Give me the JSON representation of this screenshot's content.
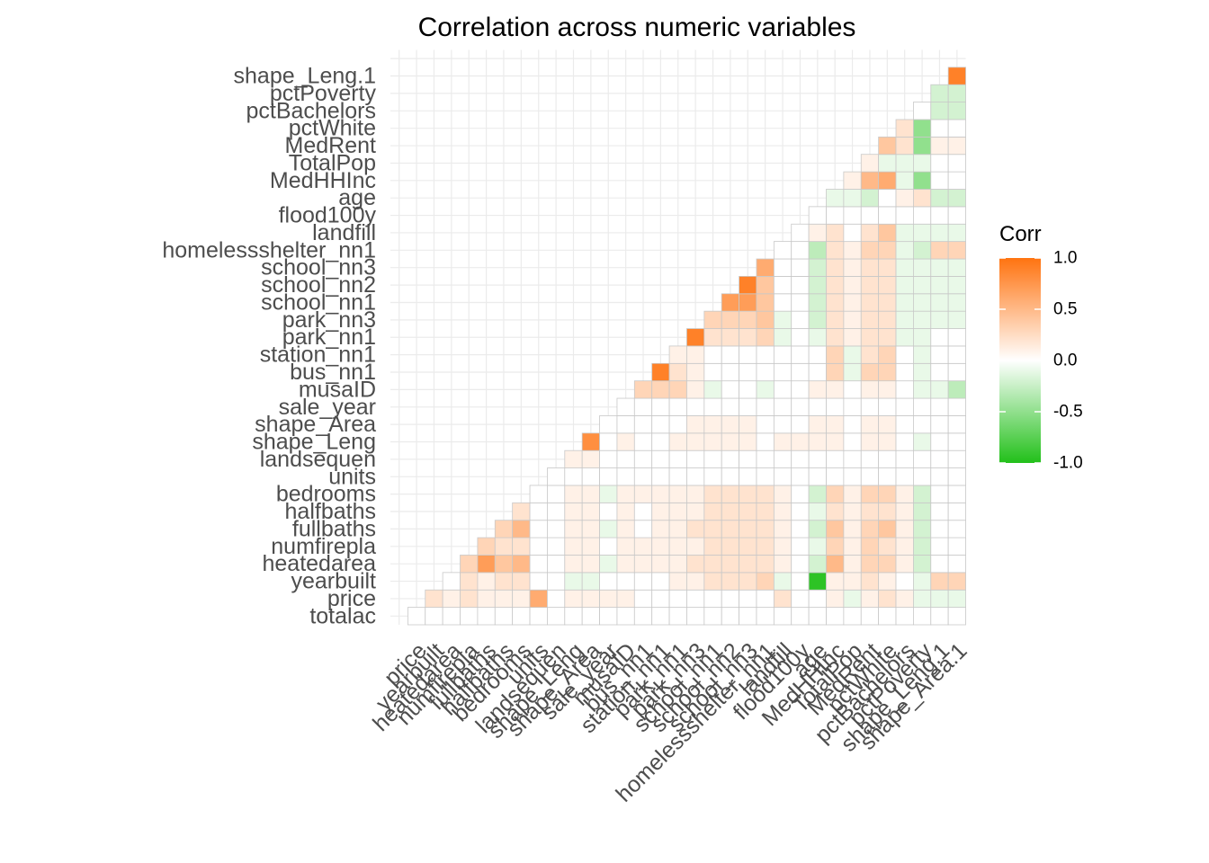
{
  "chart_data": {
    "type": "heatmap",
    "title": "Correlation across numeric variables",
    "xlabel": "",
    "ylabel": "",
    "variables": [
      "totalac",
      "price",
      "yearbuilt",
      "heatedarea",
      "numfirepla",
      "fullbaths",
      "halfbaths",
      "bedrooms",
      "units",
      "landsequen",
      "shape_Leng",
      "shape_Area",
      "sale_year",
      "musaID",
      "bus_nn1",
      "station_nn1",
      "park_nn1",
      "park_nn3",
      "school_nn1",
      "school_nn2",
      "school_nn3",
      "homelessshelter_nn1",
      "landfill",
      "flood100y",
      "age",
      "MedHHInc",
      "TotalPop",
      "MedRent",
      "pctWhite",
      "pctBachelors",
      "pctPoverty",
      "shape_Leng.1",
      "shape_Area.1"
    ],
    "y_tick_labels": [
      "totalac",
      "price",
      "yearbuilt",
      "heatedarea",
      "numfirepla",
      "fullbaths",
      "halfbaths",
      "bedrooms",
      "units",
      "landsequen",
      "shape_Leng",
      "shape_Area",
      "sale_year",
      "musaID",
      "bus_nn1",
      "station_nn1",
      "park_nn1",
      "park_nn3",
      "school_nn1",
      "school_nn2",
      "school_nn3",
      "homelessshelter_nn1",
      "landfill",
      "flood100y",
      "age",
      "MedHHInc",
      "TotalPop",
      "MedRent",
      "pctWhite",
      "pctBachelors",
      "pctPoverty",
      "shape_Leng.1"
    ],
    "x_tick_labels": [
      "price",
      "yearbuilt",
      "heatedarea",
      "numfirepla",
      "fullbaths",
      "halfbaths",
      "bedrooms",
      "units",
      "landsequen",
      "shape_Leng",
      "shape_Area",
      "sale_year",
      "musaID",
      "bus_nn1",
      "station_nn1",
      "park_nn1",
      "park_nn3",
      "school_nn1",
      "school_nn2",
      "school_nn3",
      "homelessshelter_nn1",
      "landfill",
      "flood100y",
      "age",
      "MedHHInc",
      "TotalPop",
      "MedRent",
      "pctWhite",
      "pctBachelors",
      "pctPoverty",
      "shape_Leng.1",
      "shape_Area.1"
    ],
    "matrix_note": "lower-triangle correlation; cell values listed per column (x variable) from row 'totalac' upward",
    "columns": [
      {
        "x": "price",
        "values": [
          0
        ]
      },
      {
        "x": "yearbuilt",
        "values": [
          0,
          0.2
        ]
      },
      {
        "x": "heatedarea",
        "values": [
          0,
          0.1,
          0
        ]
      },
      {
        "x": "numfirepla",
        "values": [
          0,
          0.2,
          0.2,
          0.3
        ]
      },
      {
        "x": "fullbaths",
        "values": [
          0,
          0.1,
          0.1,
          0.7,
          0.3
        ]
      },
      {
        "x": "halfbaths",
        "values": [
          0,
          0.1,
          0.2,
          0.4,
          0.2,
          0.3
        ]
      },
      {
        "x": "bedrooms",
        "values": [
          0,
          0.1,
          0.2,
          0.5,
          0.2,
          0.5,
          0.2
        ]
      },
      {
        "x": "units",
        "values": [
          0,
          0.6,
          0,
          0,
          0,
          0,
          0,
          0
        ]
      },
      {
        "x": "landsequen",
        "values": [
          0,
          0,
          0,
          0,
          0,
          0,
          0,
          0,
          0
        ]
      },
      {
        "x": "shape_Leng",
        "values": [
          0,
          0.1,
          -0.1,
          0.1,
          0.1,
          0.1,
          0.1,
          0.1,
          0,
          0.1
        ]
      },
      {
        "x": "shape_Area",
        "values": [
          0,
          0.1,
          -0.1,
          0.1,
          0.1,
          0.1,
          0.1,
          0.1,
          0,
          0.1,
          0.8
        ]
      },
      {
        "x": "sale_year",
        "values": [
          0,
          0.1,
          0,
          -0.1,
          0,
          -0.1,
          0,
          -0.1,
          0,
          0,
          0,
          0
        ]
      },
      {
        "x": "musaID",
        "values": [
          0,
          0.1,
          0,
          0.1,
          0.1,
          0.1,
          0.1,
          0.1,
          0,
          0,
          0.1,
          0,
          0
        ]
      },
      {
        "x": "bus_nn1",
        "values": [
          0,
          0,
          0,
          0.1,
          0.1,
          0,
          0,
          0.1,
          0,
          0,
          0,
          0,
          0,
          0.3
        ]
      },
      {
        "x": "station_nn1",
        "values": [
          0,
          0,
          0,
          0.1,
          0.1,
          0.1,
          0.1,
          0.1,
          0,
          0,
          0,
          0,
          0,
          0.3,
          0.9
        ]
      },
      {
        "x": "park_nn1",
        "values": [
          0,
          0,
          0.1,
          0.1,
          0.1,
          0.1,
          0.1,
          0.1,
          0,
          0,
          0.1,
          0,
          0,
          0.3,
          0.2,
          0.1
        ]
      },
      {
        "x": "park_nn3",
        "values": [
          0,
          0,
          0.1,
          0.2,
          0.1,
          0.2,
          0.1,
          0.1,
          0,
          0,
          0.1,
          0.1,
          0,
          0.1,
          0.1,
          0.1,
          0.9
        ]
      },
      {
        "x": "school_nn1",
        "values": [
          0,
          0,
          0.2,
          0.2,
          0.2,
          0.2,
          0.2,
          0.2,
          0,
          0,
          0.1,
          0.1,
          0,
          -0.1,
          0,
          0,
          0.2,
          0.3
        ]
      },
      {
        "x": "school_nn2",
        "values": [
          0,
          0,
          0.2,
          0.2,
          0.2,
          0.2,
          0.2,
          0.2,
          0,
          0,
          0.1,
          0.1,
          0,
          0,
          0,
          0,
          0.2,
          0.3,
          0.7
        ]
      },
      {
        "x": "school_nn3",
        "values": [
          0,
          0,
          0.2,
          0.2,
          0.2,
          0.2,
          0.2,
          0.2,
          0,
          0,
          0.1,
          0.1,
          0,
          0,
          0,
          0,
          0.2,
          0.3,
          0.7,
          0.9
        ]
      },
      {
        "x": "homelessshelter_nn1",
        "values": [
          0,
          0,
          0.3,
          0.2,
          0.2,
          0.2,
          0.2,
          0.2,
          0,
          0,
          0,
          0,
          0,
          -0.1,
          0,
          0,
          0.3,
          0.4,
          0.4,
          0.4,
          0.6
        ]
      },
      {
        "x": "landfill",
        "values": [
          0,
          0.2,
          -0.1,
          0.1,
          0.1,
          0.1,
          0.1,
          0.1,
          0,
          0,
          0.1,
          0,
          0,
          0,
          0,
          0,
          -0.1,
          -0.1,
          0,
          0,
          0,
          0
        ]
      },
      {
        "x": "flood100y",
        "values": [
          0,
          0,
          0,
          0,
          0,
          0,
          0,
          0,
          0,
          0,
          0.1,
          0,
          0,
          0,
          0,
          0,
          0,
          0,
          0,
          0,
          0,
          0,
          0
        ]
      },
      {
        "x": "age",
        "values": [
          0,
          0,
          -0.95,
          -0.2,
          -0.1,
          -0.2,
          -0.1,
          -0.2,
          0,
          0,
          0.1,
          0.1,
          0,
          0.1,
          0,
          0,
          -0.1,
          -0.2,
          -0.2,
          -0.2,
          -0.2,
          -0.3,
          0.1,
          0
        ]
      },
      {
        "x": "MedHHInc",
        "values": [
          0,
          0.1,
          0.1,
          0.5,
          0.3,
          0.4,
          0.2,
          0.3,
          0,
          0,
          0.1,
          0.1,
          0,
          0.1,
          0.3,
          0.3,
          0.2,
          0.2,
          0.2,
          0.2,
          0.2,
          0.2,
          0.2,
          0,
          -0.1
        ]
      },
      {
        "x": "TotalPop",
        "values": [
          0,
          -0.1,
          0.1,
          0.1,
          0.1,
          0.1,
          0.1,
          0.1,
          0,
          0,
          0,
          0,
          0,
          0,
          -0.1,
          -0.1,
          0.1,
          0.1,
          0.1,
          0.1,
          0.1,
          0.1,
          0,
          0,
          -0.1,
          0.1
        ]
      },
      {
        "x": "MedRent",
        "values": [
          0,
          0.1,
          0.2,
          0.3,
          0.3,
          0.3,
          0.2,
          0.3,
          0,
          0,
          0.1,
          0.1,
          0,
          0.1,
          0.3,
          0.2,
          0.2,
          0.2,
          0.2,
          0.2,
          0.2,
          0.3,
          0.2,
          0,
          -0.2,
          0.5,
          0.1
        ]
      },
      {
        "x": "pctWhite",
        "values": [
          0,
          0.2,
          0.1,
          0.3,
          0.2,
          0.4,
          0.2,
          0.3,
          0,
          0,
          0.1,
          0.1,
          0,
          0.1,
          0.3,
          0.3,
          0.2,
          0.2,
          0.2,
          0.2,
          0.2,
          0.3,
          0.4,
          0,
          0,
          0.6,
          -0.1,
          0.4
        ]
      },
      {
        "x": "pctBachelors",
        "values": [
          0,
          0.1,
          0,
          0.1,
          0.1,
          0.1,
          0.1,
          0.1,
          0,
          0,
          0,
          0,
          0,
          0,
          0,
          0,
          -0.1,
          -0.1,
          -0.1,
          -0.1,
          -0.1,
          -0.1,
          -0.1,
          0,
          0.1,
          -0.1,
          -0.1,
          0.2,
          0.2
        ]
      },
      {
        "x": "pctPoverty",
        "values": [
          0,
          -0.1,
          -0.1,
          -0.2,
          -0.2,
          -0.2,
          -0.2,
          -0.2,
          0,
          0,
          -0.1,
          0,
          0,
          -0.1,
          -0.1,
          -0.1,
          -0.1,
          -0.1,
          -0.1,
          -0.1,
          -0.1,
          -0.2,
          -0.1,
          0,
          0.2,
          -0.5,
          -0.1,
          -0.5,
          -0.5,
          0
        ]
      },
      {
        "x": "shape_Leng.1",
        "values": [
          0,
          -0.1,
          0.3,
          0,
          0,
          0,
          0,
          0,
          0,
          0,
          0,
          0,
          0,
          -0.1,
          0,
          0,
          0,
          -0.1,
          -0.1,
          -0.1,
          -0.1,
          0.3,
          -0.1,
          0,
          -0.2,
          0,
          0,
          0.1,
          0,
          -0.2,
          -0.2
        ]
      },
      {
        "x": "shape_Area.1",
        "values": [
          0,
          -0.1,
          0.3,
          0,
          0,
          0,
          0,
          0,
          0,
          0,
          0,
          0,
          0,
          -0.3,
          0,
          0,
          0,
          -0.1,
          -0.1,
          -0.1,
          -0.1,
          0.3,
          -0.1,
          0,
          -0.2,
          0,
          0,
          0.1,
          0,
          -0.2,
          -0.2,
          0.9
        ]
      }
    ],
    "legend": {
      "title": "Corr",
      "ticks": [
        "1.0",
        "0.5",
        "0.0",
        "-0.5",
        "-1.0"
      ],
      "tick_values": [
        1,
        0.5,
        0,
        -0.5,
        -1
      ],
      "low_color": "#22c01a",
      "mid_color": "#ffffff",
      "high_color": "#ff7310",
      "placement": "right"
    },
    "grid": true,
    "panel_grid_color": "#ebebeb",
    "tile_border_color": "#c8c8c8"
  }
}
